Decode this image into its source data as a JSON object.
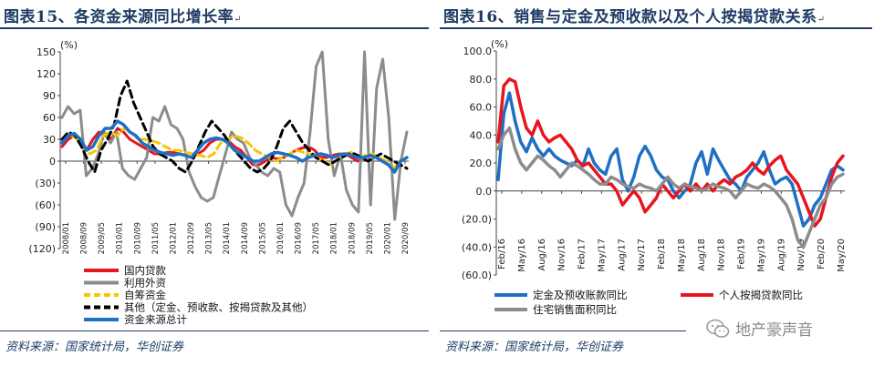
{
  "left": {
    "title": "图表15、各资金来源同比增长率",
    "paragraph_mark": "↵",
    "source": "资料来源：国家统计局，华创证券",
    "chart_data": {
      "type": "line",
      "unit": "(%)",
      "ylim": [
        -120,
        150
      ],
      "yticks": [
        150,
        120,
        90,
        60,
        30,
        0,
        -30,
        -60,
        -90,
        -120
      ],
      "ytick_labels": [
        "150",
        "120",
        "90",
        "60",
        "30",
        "0",
        "(30)",
        "(60)",
        "(90)",
        "(120)"
      ],
      "x_labels": [
        "2008/01",
        "2008/09",
        "2009/05",
        "2010/01",
        "2010/09",
        "2011/05",
        "2012/01",
        "2012/09",
        "2013/05",
        "2014/01",
        "2014/09",
        "2015/05",
        "2016/01",
        "2016/09",
        "2017/05",
        "2018/01",
        "2018/09",
        "2019/05",
        "2020/01",
        "2020/09"
      ],
      "legend": [
        {
          "name": "国内贷款",
          "color": "#e8141e",
          "dash": "none"
        },
        {
          "name": "利用外资",
          "color": "#8c8c8c",
          "dash": "none"
        },
        {
          "name": "自筹资金",
          "color": "#f5c800",
          "dash": "dash"
        },
        {
          "name": "其他（定金、预收款、按揭贷款及其他）",
          "color": "#000000",
          "dash": "dash"
        },
        {
          "name": "资金来源总计",
          "color": "#1f6fc5",
          "dash": "none"
        }
      ],
      "series": [
        {
          "name": "国内贷款",
          "values": [
            20,
            30,
            35,
            25,
            15,
            30,
            40,
            35,
            30,
            45,
            40,
            30,
            25,
            20,
            15,
            10,
            10,
            12,
            12,
            10,
            8,
            5,
            10,
            15,
            25,
            30,
            30,
            28,
            20,
            15,
            5,
            -5,
            -5,
            0,
            5,
            3,
            5,
            10,
            15,
            18,
            20,
            15,
            5,
            5,
            8,
            10,
            10,
            5,
            0,
            5,
            8,
            5,
            0,
            -5,
            -10,
            0,
            5
          ]
        },
        {
          "name": "利用外资",
          "values": [
            60,
            75,
            65,
            70,
            -20,
            -10,
            10,
            40,
            25,
            40,
            -10,
            -20,
            -25,
            -10,
            5,
            60,
            55,
            75,
            50,
            45,
            30,
            -15,
            -35,
            -50,
            -55,
            -50,
            -20,
            10,
            40,
            30,
            25,
            5,
            -5,
            -15,
            -20,
            -10,
            -15,
            -60,
            -75,
            -50,
            -30,
            40,
            130,
            150,
            30,
            -20,
            10,
            -40,
            -60,
            -70,
            150,
            -60,
            100,
            140,
            60,
            -80,
            0,
            40
          ]
        },
        {
          "name": "自筹资金",
          "values": [
            30,
            35,
            32,
            20,
            10,
            15,
            35,
            40,
            35,
            45,
            40,
            30,
            30,
            28,
            25,
            20,
            15,
            15,
            12,
            10,
            8,
            5,
            10,
            25,
            30,
            35,
            32,
            25,
            15,
            10,
            5,
            0,
            5,
            10,
            15,
            12,
            10,
            5,
            0,
            -5,
            5,
            10,
            12,
            5,
            8,
            10,
            5,
            0,
            -10,
            0,
            5
          ]
        },
        {
          "name": "其他（定金、预收款、按揭贷款及其他）",
          "values": [
            30,
            40,
            35,
            20,
            0,
            -15,
            15,
            30,
            50,
            90,
            110,
            80,
            60,
            40,
            20,
            10,
            5,
            0,
            -10,
            -15,
            0,
            20,
            40,
            55,
            45,
            35,
            20,
            10,
            0,
            -10,
            -15,
            -10,
            0,
            20,
            45,
            55,
            40,
            25,
            15,
            5,
            0,
            -5,
            0,
            5,
            10,
            10,
            5,
            0,
            5,
            10,
            5,
            0,
            -5,
            -10
          ]
        },
        {
          "name": "资金来源总计",
          "values": [
            25,
            35,
            38,
            30,
            15,
            20,
            35,
            45,
            45,
            55,
            50,
            40,
            35,
            25,
            20,
            15,
            12,
            10,
            8,
            10,
            8,
            5,
            15,
            25,
            30,
            32,
            30,
            25,
            15,
            10,
            5,
            0,
            0,
            5,
            10,
            12,
            10,
            8,
            5,
            0,
            5,
            8,
            10,
            8,
            5,
            8,
            10,
            8,
            5,
            5,
            8,
            5,
            0,
            -5,
            -15,
            0,
            5
          ]
        }
      ]
    }
  },
  "right": {
    "title": "图表16、销售与定金及预收款以及个人按揭贷款关系",
    "paragraph_mark": "↵",
    "source": "资料来源：国家统计局，华创证券",
    "chart_data": {
      "type": "line",
      "unit": "(%)",
      "ylim": [
        -60,
        100
      ],
      "yticks": [
        100,
        80,
        60,
        40,
        20,
        0,
        -20,
        -40,
        -60
      ],
      "ytick_labels": [
        "100.0",
        "80.0",
        "60.0",
        "40.0",
        "20.0",
        "0.0",
        "(20.0)",
        "(40.0)",
        "(60.0)"
      ],
      "x_labels": [
        "Feb/16",
        "May/16",
        "Aug/16",
        "Nov/16",
        "Feb/17",
        "May/17",
        "Aug/17",
        "Nov/17",
        "Feb/18",
        "May/18",
        "Aug/18",
        "Nov/18",
        "Feb/19",
        "May/19",
        "Aug/19",
        "Nov/19",
        "Feb/20",
        "May/20"
      ],
      "legend": [
        {
          "name": "定金及预收账款同比",
          "color": "#1f6fc5"
        },
        {
          "name": "个人按揭贷款同比",
          "color": "#e8141e"
        },
        {
          "name": "住宅销售面积同比",
          "color": "#8c8c8c"
        }
      ],
      "series": [
        {
          "name": "定金及预收账款同比",
          "values": [
            8,
            55,
            70,
            50,
            35,
            28,
            38,
            30,
            25,
            30,
            25,
            22,
            20,
            18,
            22,
            18,
            30,
            20,
            15,
            12,
            25,
            30,
            8,
            0,
            10,
            25,
            32,
            25,
            15,
            10,
            8,
            0,
            -5,
            0,
            5,
            20,
            28,
            12,
            30,
            22,
            15,
            8,
            5,
            0,
            10,
            15,
            20,
            28,
            15,
            5,
            8,
            10,
            5,
            -10,
            -25,
            -20,
            -10,
            -5,
            5,
            15,
            18,
            15
          ]
        },
        {
          "name": "个人按揭贷款同比",
          "values": [
            35,
            75,
            80,
            78,
            60,
            45,
            40,
            50,
            40,
            35,
            38,
            40,
            35,
            30,
            22,
            18,
            20,
            15,
            10,
            5,
            5,
            0,
            -10,
            -5,
            0,
            -5,
            -15,
            -10,
            -5,
            5,
            0,
            -5,
            0,
            5,
            0,
            5,
            0,
            5,
            0,
            5,
            8,
            5,
            10,
            12,
            15,
            20,
            15,
            12,
            18,
            22,
            25,
            15,
            10,
            5,
            -5,
            -15,
            -25,
            -20,
            -5,
            10,
            20,
            25
          ]
        },
        {
          "name": "住宅销售面积同比",
          "values": [
            30,
            40,
            45,
            30,
            20,
            15,
            20,
            25,
            22,
            18,
            15,
            10,
            15,
            20,
            18,
            15,
            12,
            8,
            5,
            5,
            10,
            8,
            5,
            3,
            2,
            5,
            3,
            2,
            0,
            5,
            10,
            5,
            2,
            5,
            3,
            2,
            0,
            2,
            5,
            3,
            2,
            0,
            -5,
            0,
            5,
            3,
            2,
            5,
            3,
            0,
            -5,
            -10,
            -20,
            -35,
            -40,
            -30,
            -20,
            -10,
            -5,
            5,
            10,
            12
          ]
        }
      ]
    }
  },
  "watermark": {
    "text": "地产豪声音",
    "icon": "wechat-icon"
  }
}
